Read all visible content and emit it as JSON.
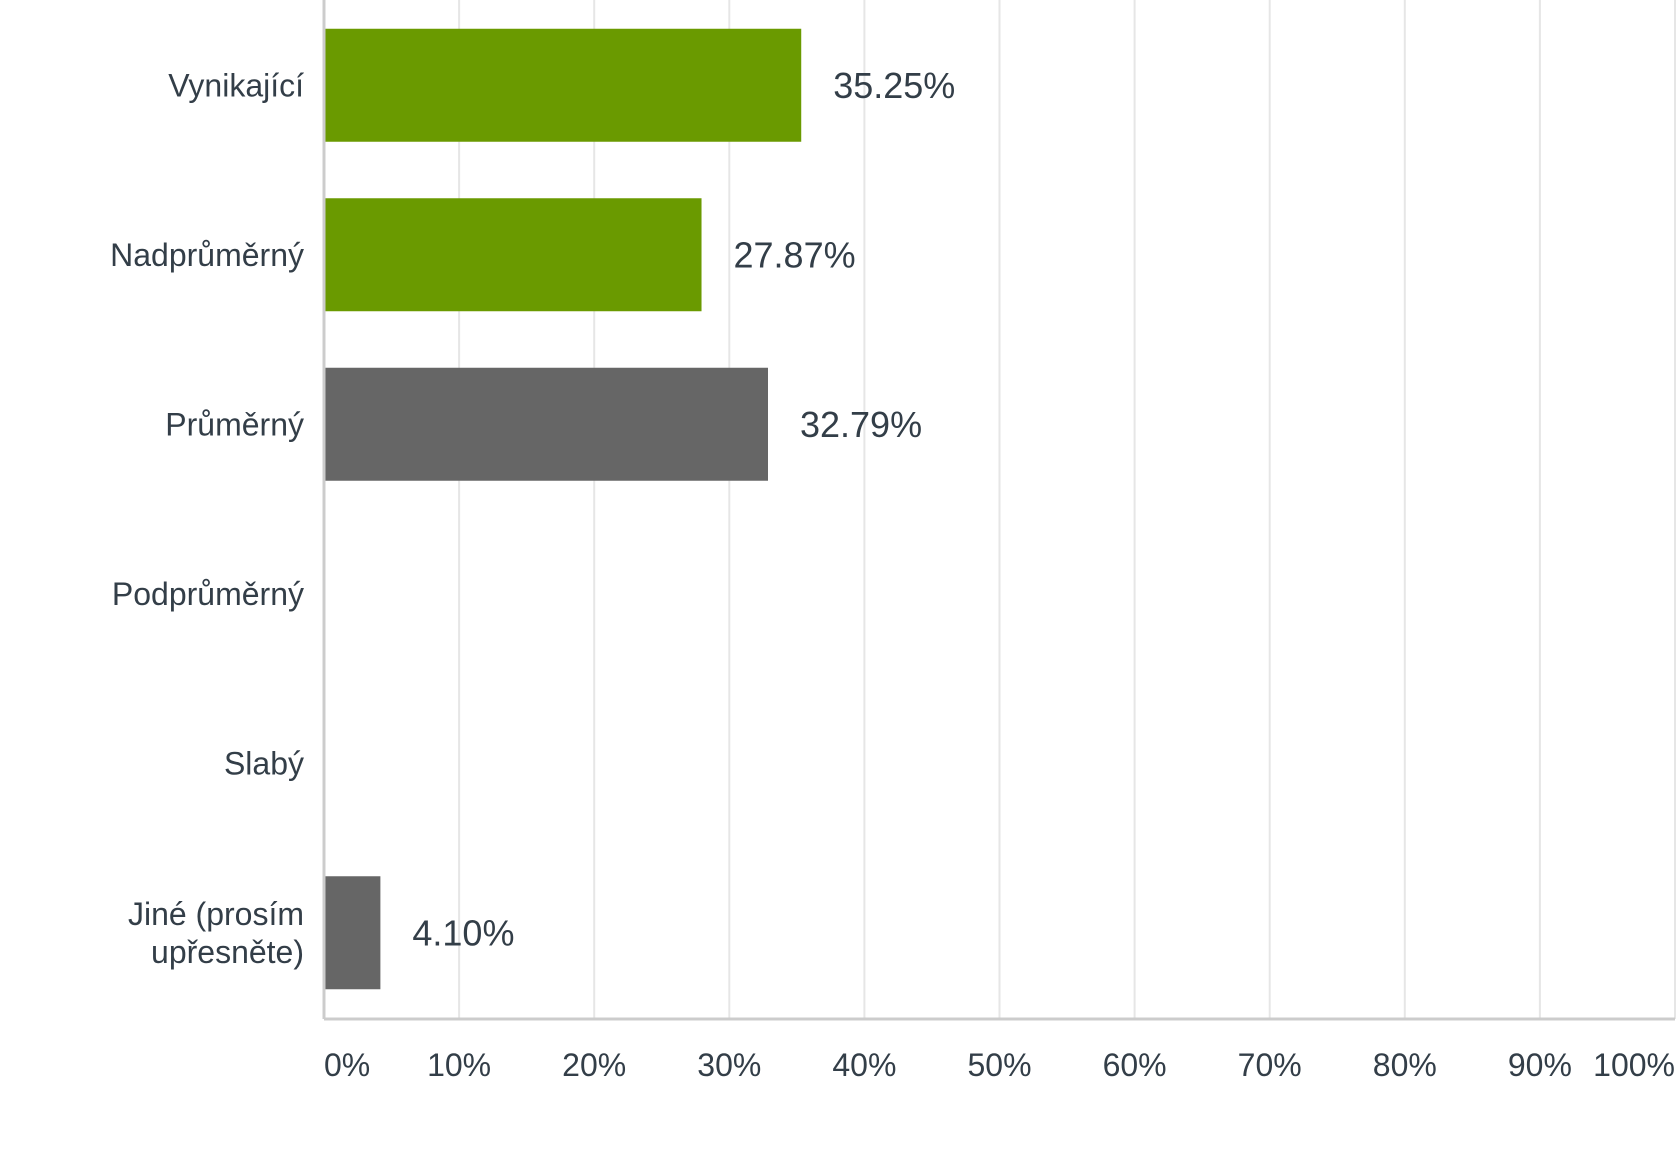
{
  "chart_data": {
    "type": "bar",
    "orientation": "horizontal",
    "categories": [
      "Vynikající",
      "Nadprůměrný",
      "Průměrný",
      "Podprůměrný",
      "Slabý",
      "Jiné (prosím upřesněte)"
    ],
    "category_lines": [
      [
        "Vynikající"
      ],
      [
        "Nadprůměrný"
      ],
      [
        "Průměrný"
      ],
      [
        "Podprůměrný"
      ],
      [
        "Slabý"
      ],
      [
        "Jiné (prosím",
        "upřesněte)"
      ]
    ],
    "values": [
      35.25,
      27.87,
      32.79,
      0,
      0,
      4.1
    ],
    "value_labels": [
      "35.25%",
      "27.87%",
      "32.79%",
      "",
      "",
      "4.10%"
    ],
    "bar_colors": [
      "#6a9a00",
      "#6a9a00",
      "#666666",
      "#666666",
      "#666666",
      "#666666"
    ],
    "xlim": [
      0,
      100
    ],
    "x_ticks": [
      0,
      10,
      20,
      30,
      40,
      50,
      60,
      70,
      80,
      90,
      100
    ],
    "x_tick_labels": [
      "0%",
      "10%",
      "20%",
      "30%",
      "40%",
      "50%",
      "60%",
      "70%",
      "80%",
      "90%",
      "100%"
    ],
    "grid": true,
    "title": "",
    "xlabel": "",
    "ylabel": "",
    "colors": {
      "grid": "#e6e6e6",
      "axis": "#cccccc",
      "text": "#333e48"
    }
  }
}
